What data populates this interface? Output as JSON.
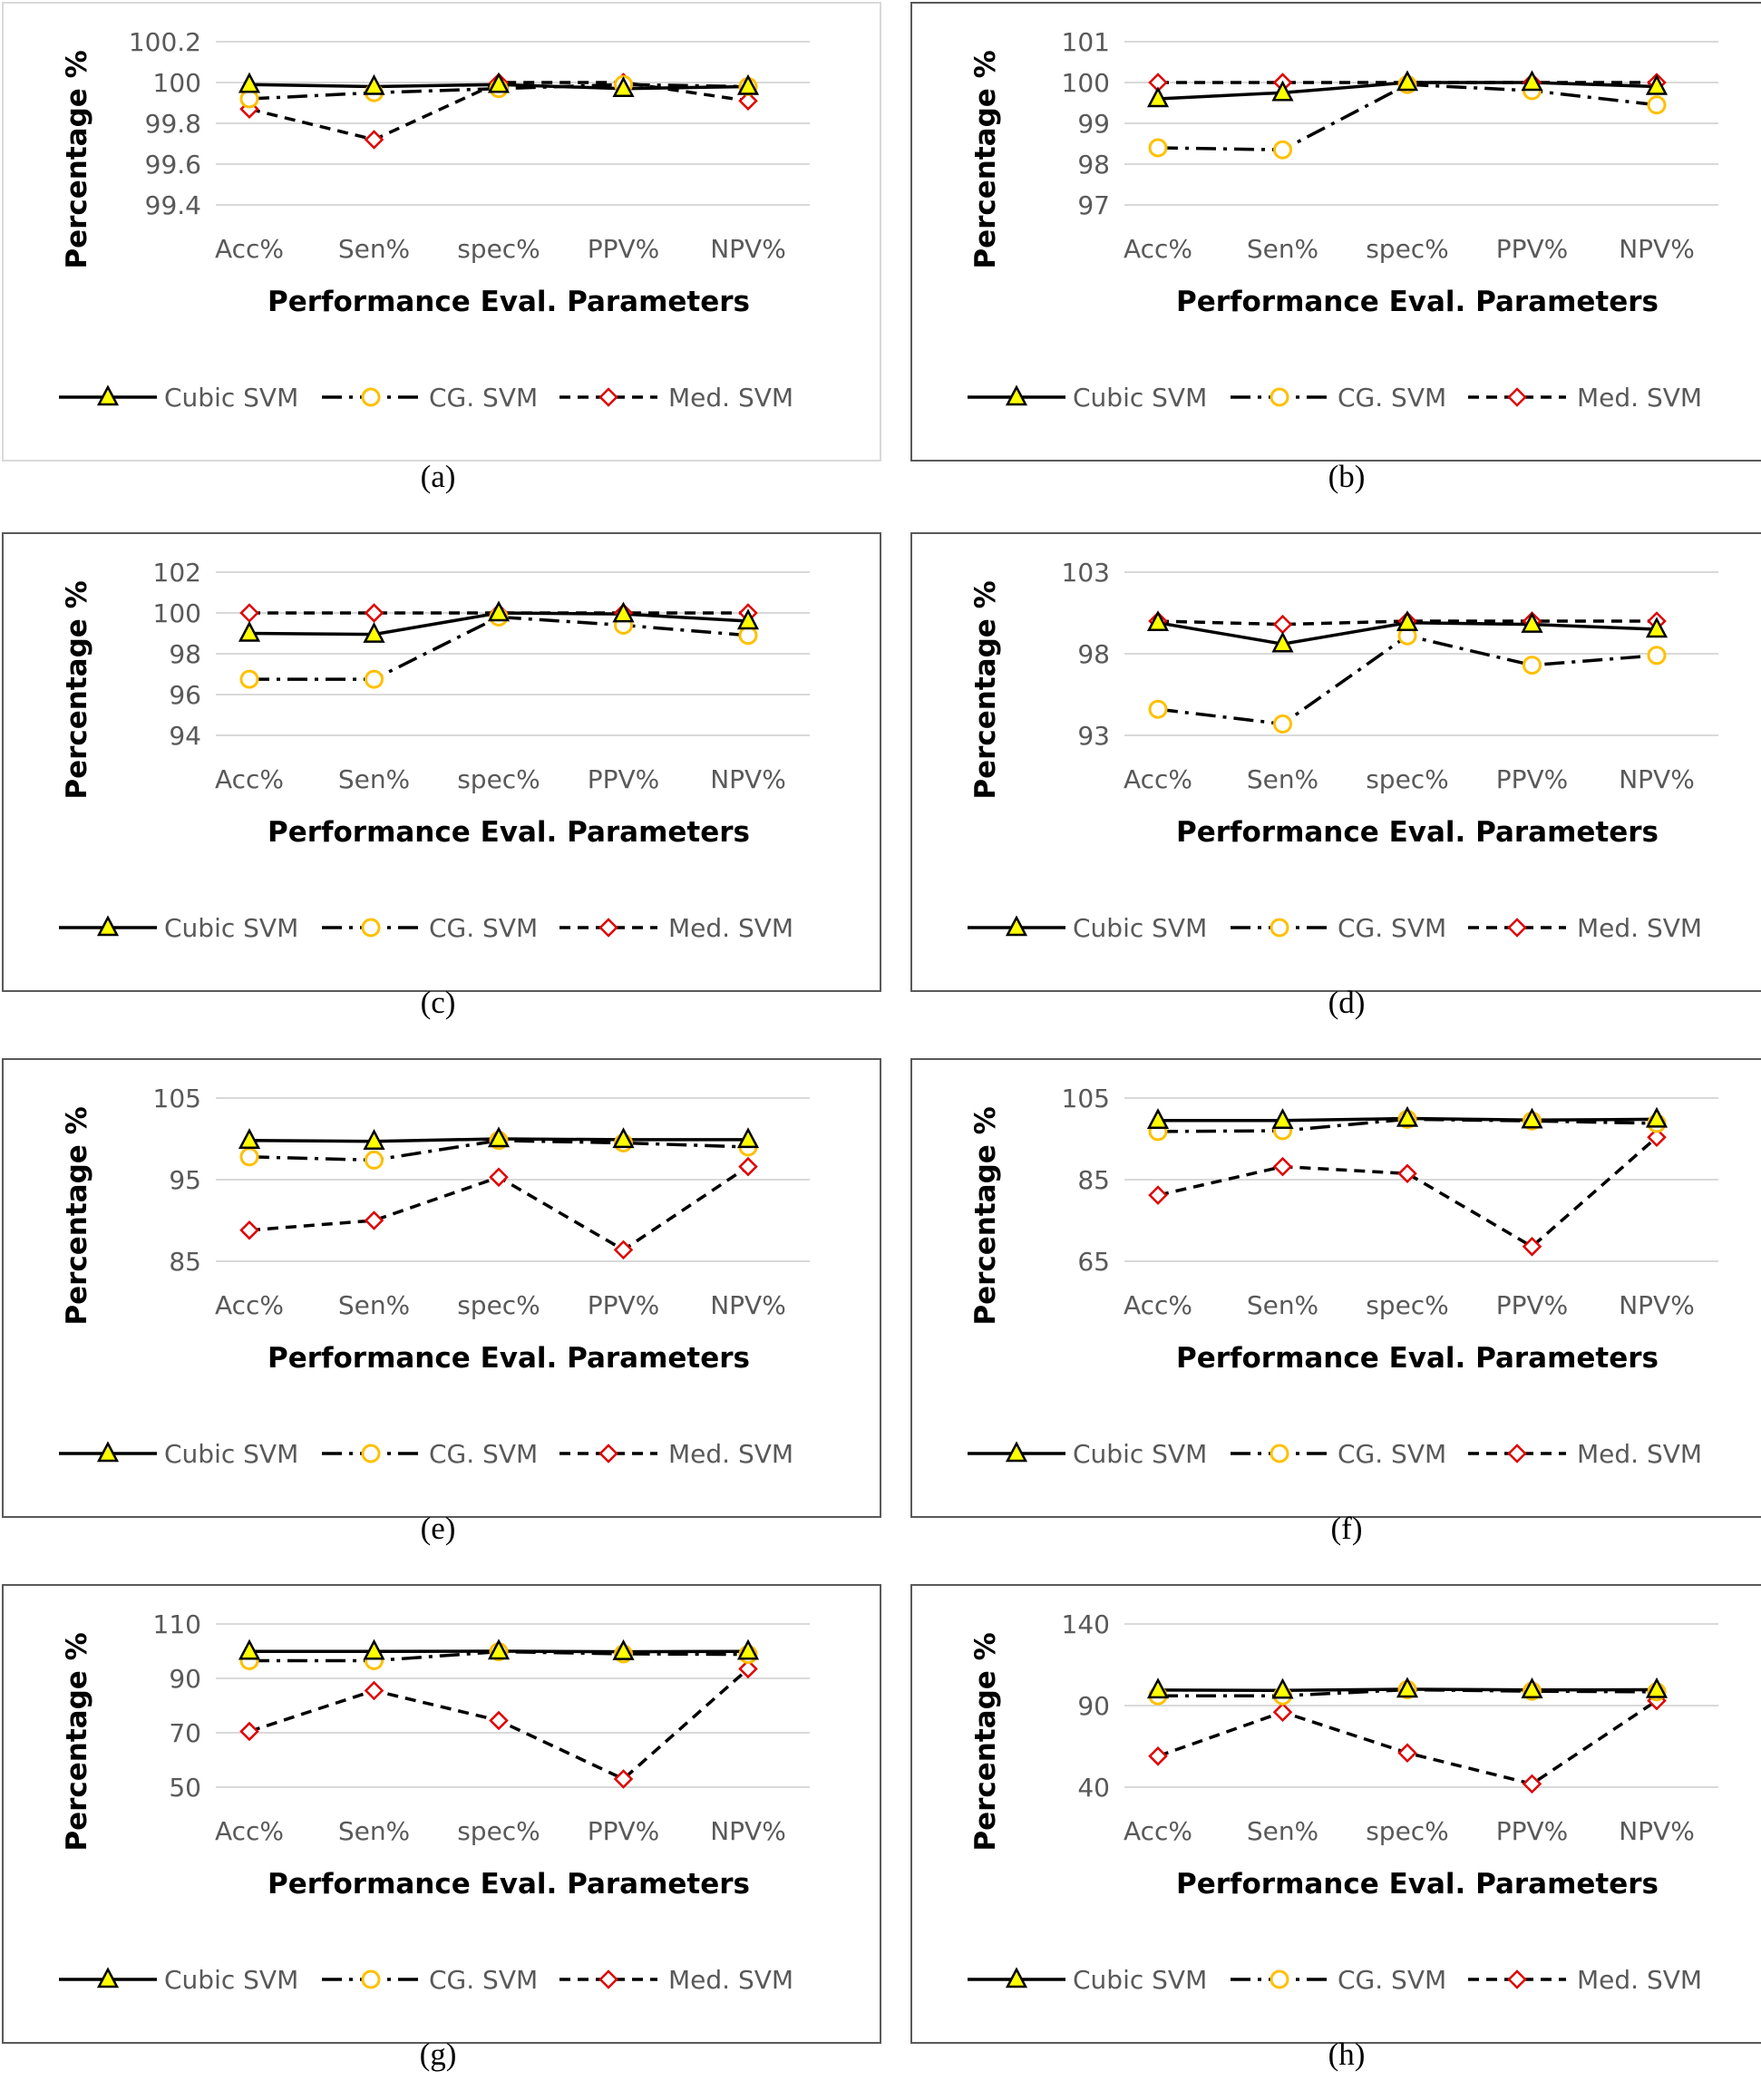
{
  "figure": {
    "legend": [
      {
        "name": "Cubic SVM",
        "line": "#000000",
        "fill": "#ffff00",
        "marker": "triangle",
        "dash": "solid"
      },
      {
        "name": "CG. SVM",
        "line": "#000000",
        "fill": "#ffffff",
        "stroke": "#ffc000",
        "marker": "circle",
        "dash": "dash-dot"
      },
      {
        "name": "Med. SVM",
        "line": "#000000",
        "fill": "#ffffff",
        "stroke": "#e00000",
        "marker": "diamond",
        "dash": "dashed"
      }
    ]
  },
  "chart_data": [
    {
      "type": "line",
      "caption": "(a)",
      "bordered": false,
      "ylabel": "Percentage %",
      "xlabel": "Performance Eval. Parameters",
      "categories": [
        "Acc%",
        "Sen%",
        "spec%",
        "PPV%",
        "NPV%"
      ],
      "yticks": [
        "99.4",
        "99.6",
        "99.8",
        "100",
        "100.2"
      ],
      "ylim": [
        99.4,
        100.2
      ],
      "series": [
        {
          "name": "Cubic SVM",
          "values": [
            99.99,
            99.98,
            99.99,
            99.97,
            99.98
          ]
        },
        {
          "name": "CG. SVM",
          "values": [
            99.92,
            99.95,
            99.97,
            99.99,
            99.98
          ]
        },
        {
          "name": "Med. SVM",
          "values": [
            99.87,
            99.72,
            100.0,
            100.0,
            99.91
          ]
        }
      ]
    },
    {
      "type": "line",
      "caption": "(b)",
      "bordered": true,
      "ylabel": "Percentage %",
      "xlabel": "Performance Eval. Parameters",
      "categories": [
        "Acc%",
        "Sen%",
        "spec%",
        "PPV%",
        "NPV%"
      ],
      "yticks": [
        "97",
        "98",
        "99",
        "100",
        "101"
      ],
      "ylim": [
        97,
        101
      ],
      "series": [
        {
          "name": "Cubic SVM",
          "values": [
            99.6,
            99.75,
            100.0,
            100.0,
            99.9
          ]
        },
        {
          "name": "CG. SVM",
          "values": [
            98.4,
            98.35,
            99.95,
            99.8,
            99.45
          ]
        },
        {
          "name": "Med. SVM",
          "values": [
            100.0,
            100.0,
            100.0,
            100.0,
            100.0
          ]
        }
      ]
    },
    {
      "type": "line",
      "caption": "(c)",
      "bordered": true,
      "ylabel": "Percentage %",
      "xlabel": "Performance Eval. Parameters",
      "categories": [
        "Acc%",
        "Sen%",
        "spec%",
        "PPV%",
        "NPV%"
      ],
      "yticks": [
        "94",
        "96",
        "98",
        "100",
        "102"
      ],
      "ylim": [
        94,
        102
      ],
      "series": [
        {
          "name": "Cubic SVM",
          "values": [
            99.0,
            98.95,
            100.0,
            99.95,
            99.6
          ]
        },
        {
          "name": "CG. SVM",
          "values": [
            96.75,
            96.75,
            99.8,
            99.4,
            98.9
          ]
        },
        {
          "name": "Med. SVM",
          "values": [
            100.0,
            100.0,
            100.0,
            100.0,
            100.0
          ]
        }
      ]
    },
    {
      "type": "line",
      "caption": "(d)",
      "bordered": true,
      "ylabel": "Percentage %",
      "xlabel": "Performance Eval. Parameters",
      "categories": [
        "Acc%",
        "Sen%",
        "spec%",
        "PPV%",
        "NPV%"
      ],
      "yticks": [
        "93",
        "98",
        "103"
      ],
      "ylim": [
        93,
        103
      ],
      "series": [
        {
          "name": "Cubic SVM",
          "values": [
            99.9,
            98.6,
            99.9,
            99.8,
            99.5
          ]
        },
        {
          "name": "CG. SVM",
          "values": [
            94.6,
            93.7,
            99.1,
            97.3,
            97.9
          ]
        },
        {
          "name": "Med. SVM",
          "values": [
            100.0,
            99.8,
            100.0,
            100.0,
            100.0
          ]
        }
      ]
    },
    {
      "type": "line",
      "caption": "(e)",
      "bordered": true,
      "ylabel": "Percentage %",
      "xlabel": "Performance Eval. Parameters",
      "categories": [
        "Acc%",
        "Sen%",
        "spec%",
        "PPV%",
        "NPV%"
      ],
      "yticks": [
        "85",
        "95",
        "105"
      ],
      "ylim": [
        85,
        105
      ],
      "series": [
        {
          "name": "Cubic SVM",
          "values": [
            99.8,
            99.7,
            100.0,
            99.9,
            99.9
          ]
        },
        {
          "name": "CG. SVM",
          "values": [
            97.8,
            97.4,
            99.8,
            99.5,
            99.0
          ]
        },
        {
          "name": "Med. SVM",
          "values": [
            88.8,
            90.0,
            95.3,
            86.4,
            96.6
          ]
        }
      ]
    },
    {
      "type": "line",
      "caption": "(f)",
      "bordered": true,
      "ylabel": "Percentage %",
      "xlabel": "Performance Eval. Parameters",
      "categories": [
        "Acc%",
        "Sen%",
        "spec%",
        "PPV%",
        "NPV%"
      ],
      "yticks": [
        "65",
        "85",
        "105"
      ],
      "ylim": [
        65,
        105
      ],
      "series": [
        {
          "name": "Cubic SVM",
          "values": [
            99.5,
            99.5,
            100.0,
            99.6,
            99.8
          ]
        },
        {
          "name": "CG. SVM",
          "values": [
            96.8,
            97.0,
            99.8,
            99.4,
            98.8
          ]
        },
        {
          "name": "Med. SVM",
          "values": [
            81.2,
            88.2,
            86.5,
            68.6,
            95.4
          ]
        }
      ]
    },
    {
      "type": "line",
      "caption": "(g)",
      "bordered": true,
      "ylabel": "Percentage %",
      "xlabel": "Performance Eval. Parameters",
      "categories": [
        "Acc%",
        "Sen%",
        "spec%",
        "PPV%",
        "NPV%"
      ],
      "yticks": [
        "50",
        "70",
        "90",
        "110"
      ],
      "ylim": [
        50,
        110
      ],
      "series": [
        {
          "name": "Cubic SVM",
          "values": [
            99.9,
            99.9,
            100.0,
            99.8,
            99.9
          ]
        },
        {
          "name": "CG. SVM",
          "values": [
            96.5,
            96.5,
            99.8,
            99.0,
            98.8
          ]
        },
        {
          "name": "Med. SVM",
          "values": [
            70.5,
            85.5,
            74.5,
            53.0,
            93.5
          ]
        }
      ]
    },
    {
      "type": "line",
      "caption": "(h)",
      "bordered": true,
      "ylabel": "Percentage %",
      "xlabel": "Performance Eval. Parameters",
      "categories": [
        "Acc%",
        "Sen%",
        "spec%",
        "PPV%",
        "NPV%"
      ],
      "yticks": [
        "40",
        "90",
        "140"
      ],
      "ylim": [
        40,
        140
      ],
      "series": [
        {
          "name": "Cubic SVM",
          "values": [
            99.5,
            99.3,
            100.0,
            99.6,
            99.7
          ]
        },
        {
          "name": "CG. SVM",
          "values": [
            96.0,
            96.0,
            99.7,
            98.8,
            98.4
          ]
        },
        {
          "name": "Med. SVM",
          "values": [
            59.0,
            86.0,
            61.0,
            42.0,
            93.0
          ]
        }
      ]
    }
  ]
}
